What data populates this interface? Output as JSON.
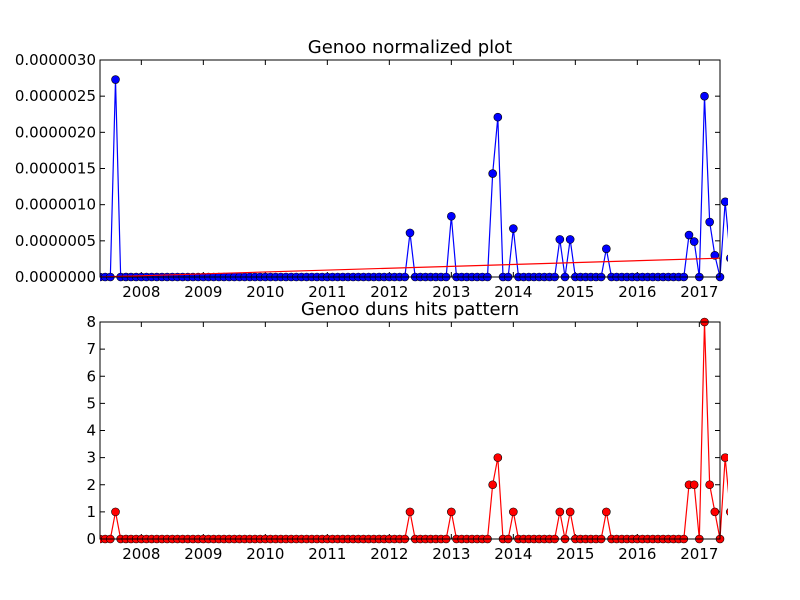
{
  "chart_data": [
    {
      "type": "line",
      "title": "Genoo normalized plot",
      "xlabel": "",
      "ylabel": "",
      "x_start": "2007-05",
      "x_end": "2017-05",
      "xlim": [
        "2007-05",
        "2017-05"
      ],
      "ylim": [
        0,
        3e-06
      ],
      "xticks": [
        "2008",
        "2009",
        "2010",
        "2011",
        "2012",
        "2013",
        "2014",
        "2015",
        "2016",
        "2017"
      ],
      "yticks": [
        "0.0000000",
        "0.0000005",
        "0.0000010",
        "0.0000015",
        "0.0000020",
        "0.0000025",
        "0.0000030"
      ],
      "grid": false,
      "series": [
        {
          "color": "#0000ff",
          "marker": "circle",
          "values": [
            0,
            0,
            0,
            2.73e-06,
            0,
            0,
            0,
            0,
            0,
            0,
            0,
            0,
            0,
            0,
            0,
            0,
            0,
            0,
            0,
            0,
            0,
            0,
            0,
            0,
            0,
            0,
            0,
            0,
            0,
            0,
            0,
            0,
            0,
            0,
            0,
            0,
            0,
            0,
            0,
            0,
            0,
            0,
            0,
            0,
            0,
            0,
            0,
            0,
            0,
            0,
            0,
            0,
            0,
            0,
            0,
            0,
            0,
            0,
            0,
            0,
            6.1e-07,
            0,
            0,
            0,
            0,
            0,
            0,
            0,
            8.4e-07,
            0,
            0,
            0,
            0,
            0,
            0,
            0,
            1.43e-06,
            2.21e-06,
            0,
            0,
            6.7e-07,
            0,
            0,
            0,
            0,
            0,
            0,
            0,
            0,
            5.2e-07,
            0,
            5.2e-07,
            0,
            0,
            0,
            0,
            0,
            0,
            3.9e-07,
            0,
            0,
            0,
            0,
            0,
            0,
            0,
            0,
            0,
            0,
            0,
            0,
            0,
            0,
            0,
            5.8e-07,
            4.9e-07,
            0,
            2.5e-06,
            7.6e-07,
            3e-07,
            0,
            1.04e-06,
            2.6e-07
          ]
        },
        {
          "color": "#ff0000",
          "marker": "none",
          "trend": [
            0,
            2.6e-07
          ]
        }
      ]
    },
    {
      "type": "line",
      "title": "Genoo duns hits pattern",
      "xlabel": "",
      "ylabel": "",
      "x_start": "2007-05",
      "x_end": "2017-05",
      "xlim": [
        "2007-05",
        "2017-05"
      ],
      "ylim": [
        0,
        8
      ],
      "xticks": [
        "2008",
        "2009",
        "2010",
        "2011",
        "2012",
        "2013",
        "2014",
        "2015",
        "2016",
        "2017"
      ],
      "yticks": [
        "0",
        "1",
        "2",
        "3",
        "4",
        "5",
        "6",
        "7",
        "8"
      ],
      "grid": false,
      "series": [
        {
          "color": "#ff0000",
          "marker": "circle",
          "values": [
            0,
            0,
            0,
            1,
            0,
            0,
            0,
            0,
            0,
            0,
            0,
            0,
            0,
            0,
            0,
            0,
            0,
            0,
            0,
            0,
            0,
            0,
            0,
            0,
            0,
            0,
            0,
            0,
            0,
            0,
            0,
            0,
            0,
            0,
            0,
            0,
            0,
            0,
            0,
            0,
            0,
            0,
            0,
            0,
            0,
            0,
            0,
            0,
            0,
            0,
            0,
            0,
            0,
            0,
            0,
            0,
            0,
            0,
            0,
            0,
            1,
            0,
            0,
            0,
            0,
            0,
            0,
            0,
            1,
            0,
            0,
            0,
            0,
            0,
            0,
            0,
            2,
            3,
            0,
            0,
            1,
            0,
            0,
            0,
            0,
            0,
            0,
            0,
            0,
            1,
            0,
            1,
            0,
            0,
            0,
            0,
            0,
            0,
            1,
            0,
            0,
            0,
            0,
            0,
            0,
            0,
            0,
            0,
            0,
            0,
            0,
            0,
            0,
            0,
            2,
            2,
            0,
            8,
            2,
            1,
            0,
            3,
            1
          ]
        }
      ]
    }
  ]
}
